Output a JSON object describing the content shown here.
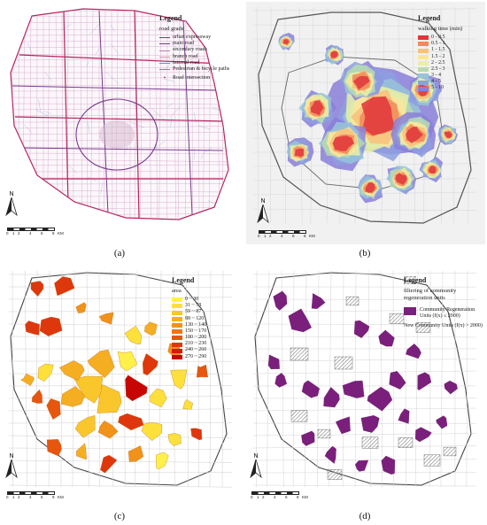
{
  "captions": [
    "(a)",
    "(b)",
    "(c)",
    "(d)"
  ],
  "north_label": "N",
  "scale": {
    "ticks": [
      "0",
      "1",
      "2",
      "4",
      "6",
      "8"
    ],
    "unit": "KM"
  },
  "panel_a": {
    "legend_title": "Legend",
    "subtitle": "road grade",
    "items": [
      {
        "label": "urban expressway",
        "color": "#b5245e"
      },
      {
        "label": "main road",
        "color": "#7a3b8f"
      },
      {
        "label": "secondary roads",
        "color": "#c27bb3"
      },
      {
        "label": "branch road",
        "color": "#d98fb0"
      },
      {
        "label": "internal road",
        "color": "#6a8fcf"
      },
      {
        "label": "Pedestrian & bicycle paths",
        "color": "#4fa38a"
      }
    ],
    "intersection_label": "Road intersection"
  },
  "panel_b": {
    "legend_title": "Legend",
    "subtitle": "walking time (min)",
    "items": [
      {
        "label": "0 - 0.5",
        "color": "#e0363b"
      },
      {
        "label": "0.5 - 1",
        "color": "#f08a5c"
      },
      {
        "label": "1 - 1.5",
        "color": "#f7c17c"
      },
      {
        "label": "1.5 - 2",
        "color": "#fbe59b"
      },
      {
        "label": "2 - 2.5",
        "color": "#e9f0a6"
      },
      {
        "label": "2.5 - 3",
        "color": "#b9dbaf"
      },
      {
        "label": "3 - 4",
        "color": "#98c4d8"
      },
      {
        "label": "4 - 5",
        "color": "#8e9fe0"
      },
      {
        "label": "5 - 10",
        "color": "#8a7fd9"
      }
    ]
  },
  "panel_c": {
    "legend_title": "Legend",
    "subtitle": "area",
    "items": [
      {
        "label": "0 ~ 30",
        "color": "#fff04a"
      },
      {
        "label": "31 ~ 58",
        "color": "#fde03a"
      },
      {
        "label": "59 ~ 87",
        "color": "#f9c72c"
      },
      {
        "label": "88 ~ 120",
        "color": "#f5ae22"
      },
      {
        "label": "130 ~ 140",
        "color": "#f1921a"
      },
      {
        "label": "150 ~ 170",
        "color": "#ec7514"
      },
      {
        "label": "180 ~ 200",
        "color": "#e6560f"
      },
      {
        "label": "210 ~ 230",
        "color": "#df370c"
      },
      {
        "label": "240 ~ 260",
        "color": "#d8180a"
      },
      {
        "label": "270 ~ 290",
        "color": "#c80505"
      }
    ]
  },
  "panel_d": {
    "legend_title": "Legend",
    "subtitle": "filtering of community regeneration units",
    "community_label": "Community Regeneration Units (I(x) ≤ 2000)",
    "new_label": "New Community Units (I(x) > 2000)",
    "community_color": "#7b1f7c"
  }
}
